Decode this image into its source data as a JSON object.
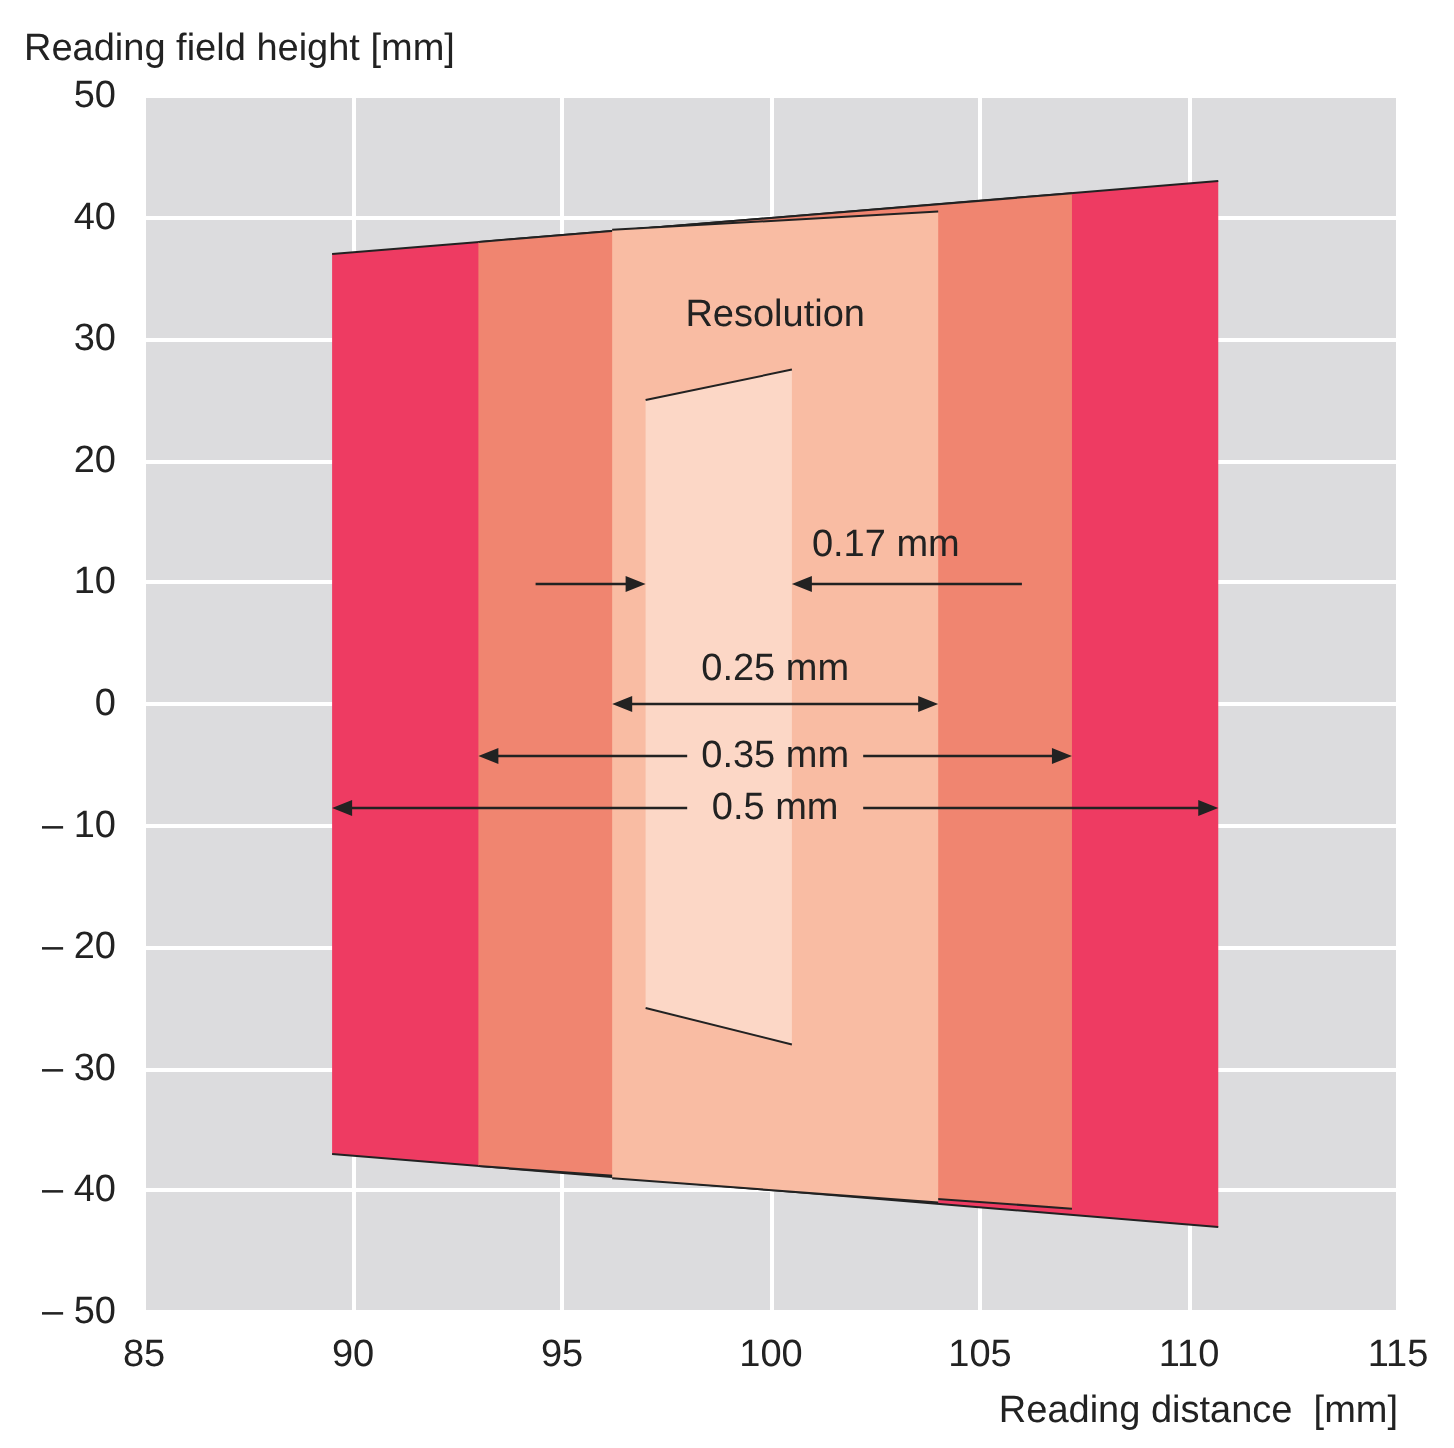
{
  "chart_data": {
    "type": "area",
    "xlabel": "Reading distance  [mm]",
    "ylabel": "Reading field height [mm]",
    "annotations": [
      "Resolution"
    ],
    "series": [
      {
        "name": "0.5 mm",
        "color": "#ee3b62",
        "x": [
          89.5,
          110.7
        ],
        "values": [
          37,
          43
        ]
      },
      {
        "color": "#ee3b62",
        "x": [
          89.5,
          110.7
        ],
        "values": [
          -37,
          -43
        ]
      },
      {
        "name": "0.35 mm",
        "color": "#f08570",
        "x": [
          93,
          107.2
        ],
        "values": [
          38,
          42
        ]
      },
      {
        "color": "#f08570",
        "x": [
          93,
          107.2
        ],
        "values": [
          -38,
          -41.5
        ]
      },
      {
        "name": "0.25 mm",
        "color": "#f9bca3",
        "x": [
          96.2,
          104
        ],
        "values": [
          39,
          40.5
        ]
      },
      {
        "color": "#f9bca3",
        "x": [
          96.2,
          104
        ],
        "values": [
          -39,
          -41
        ]
      },
      {
        "name": "0.17 mm",
        "color": "#fcd7c6",
        "x": [
          97,
          100.5
        ],
        "values": [
          25,
          27.5
        ]
      },
      {
        "color": "#fcd7c6",
        "x": [
          97,
          100.5
        ],
        "values": [
          -25,
          -28
        ]
      }
    ],
    "xlim": [
      85,
      115
    ],
    "xticks": [
      85,
      90,
      95,
      100,
      105,
      110,
      115
    ],
    "ylim": [
      -50,
      50
    ],
    "yticks": [
      {
        "value": -50,
        "label": "– 50"
      },
      {
        "value": -40,
        "label": "– 40"
      },
      {
        "value": -30,
        "label": "– 30"
      },
      {
        "value": -20,
        "label": "– 20"
      },
      {
        "value": -10,
        "label": "– 10"
      },
      0,
      10,
      20,
      30,
      40,
      50
    ],
    "grid": true,
    "legend": false
  }
}
